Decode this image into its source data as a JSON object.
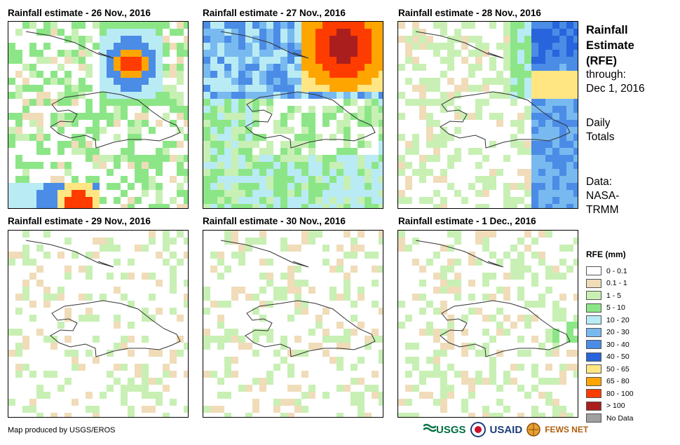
{
  "panels": [
    {
      "title": "Rainfall estimate - 26 Nov., 2016"
    },
    {
      "title": "Rainfall estimate - 27 Nov., 2016"
    },
    {
      "title": "Rainfall estimate - 28 Nov., 2016"
    },
    {
      "title": "Rainfall estimate - 29 Nov., 2016"
    },
    {
      "title": "Rainfall estimate - 30 Nov., 2016"
    },
    {
      "title": "Rainfall estimate - 1 Dec., 2016"
    }
  ],
  "side": {
    "title": "Rainfall\nEstimate\n(RFE)",
    "through": "through:\nDec 1, 2016",
    "daily": "Daily\nTotals",
    "data_source": "Data:\nNASA-\nTRMM"
  },
  "legend": {
    "title": "RFE (mm)",
    "items": [
      {
        "label": "0 - 0.1",
        "color": "#ffffff"
      },
      {
        "label": "0.1 - 1",
        "color": "#f0dcb9"
      },
      {
        "label": "1 - 5",
        "color": "#c8f0b4"
      },
      {
        "label": "5 - 10",
        "color": "#8ce687"
      },
      {
        "label": "10 - 20",
        "color": "#b9ebf5"
      },
      {
        "label": "20 - 30",
        "color": "#78b9f0"
      },
      {
        "label": "30 - 40",
        "color": "#4b8ce6"
      },
      {
        "label": "40 - 50",
        "color": "#2864dc"
      },
      {
        "label": "50 - 65",
        "color": "#ffe682"
      },
      {
        "label": "65 - 80",
        "color": "#ffa500"
      },
      {
        "label": "80 - 100",
        "color": "#ff3c00"
      },
      {
        "label": "> 100",
        "color": "#aa1e1e"
      },
      {
        "label": "No Data",
        "color": "#a0a0a0"
      }
    ]
  },
  "credit": "Map produced by USGS/EROS",
  "logos": {
    "usgs": "USGS",
    "usaid": "USAID",
    "fewsnet": "FEWS NET"
  }
}
